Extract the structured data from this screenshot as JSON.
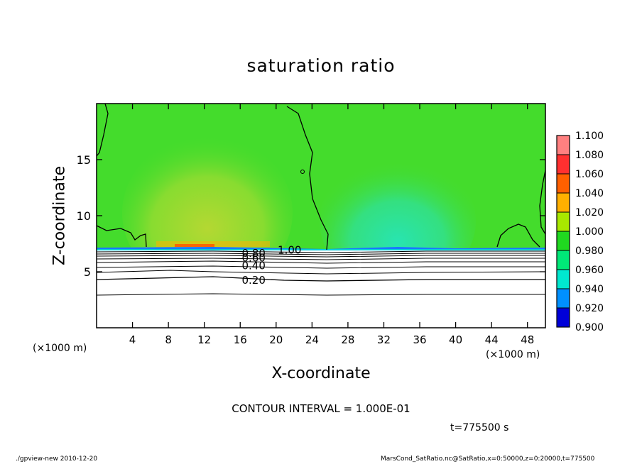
{
  "title": "saturation ratio",
  "x_unit_left": "(×1000 m)",
  "x_unit_right": "(×1000 m)",
  "contour_interval_text": "CONTOUR INTERVAL = 1.000E-01",
  "time_text": "t=775500 s",
  "footer_left": "./gpview-new   2010-12-20",
  "footer_right": "MarsCond_SatRatio.nc@SatRatio,x=0:50000,z=0:20000,t=775500",
  "chart_data": {
    "type": "heatmap",
    "title": "saturation ratio",
    "xlabel": "X-coordinate",
    "ylabel": "Z-coordinate",
    "xlim": [
      0,
      50
    ],
    "ylim": [
      0,
      20
    ],
    "x_ticks": [
      4,
      8,
      12,
      16,
      20,
      24,
      28,
      32,
      36,
      40,
      44,
      48
    ],
    "y_ticks": [
      5,
      10,
      15
    ],
    "contour_labels": [
      {
        "text": "1.00",
        "x": 21.5,
        "y": 7.0
      },
      {
        "text": "0.80",
        "x": 17.5,
        "y": 6.7
      },
      {
        "text": "0.60",
        "x": 17.5,
        "y": 6.3
      },
      {
        "text": "0.40",
        "x": 17.5,
        "y": 5.6
      },
      {
        "text": "0.20",
        "x": 17.5,
        "y": 4.3
      }
    ],
    "colorbar": {
      "ticks": [
        "1.100",
        "1.080",
        "1.060",
        "1.040",
        "1.020",
        "1.000",
        "0.980",
        "0.960",
        "0.940",
        "0.920",
        "0.900"
      ],
      "colors": [
        "#ff8080",
        "#ff3030",
        "#ff6000",
        "#ffb000",
        "#a8e800",
        "#20d820",
        "#00e878",
        "#00e8d0",
        "#0090ff",
        "#0000d8",
        "#6000a0"
      ]
    },
    "field_colors": {
      "saturated": "#44dc2c",
      "supersaturated_core": "#a8d830",
      "subsaturated_core": "#30e0a0",
      "dry": "#ffffff"
    }
  }
}
